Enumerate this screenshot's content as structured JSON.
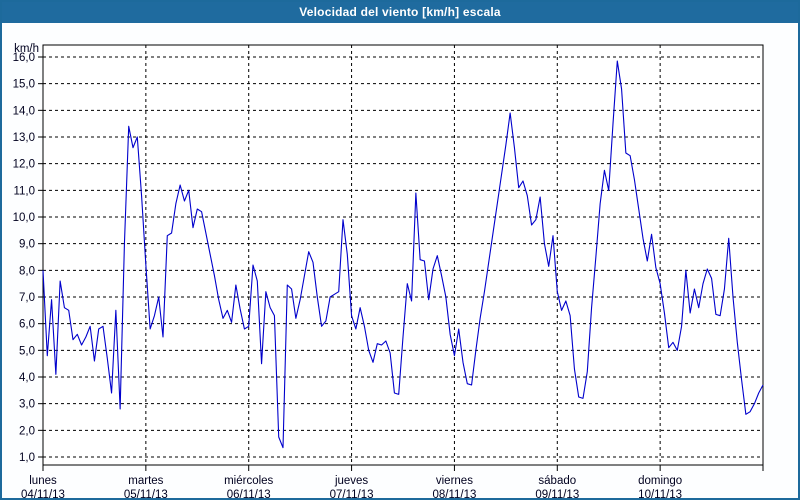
{
  "window": {
    "title": "Velocidad del viento [km/h] escala"
  },
  "colors": {
    "titlebar_bg": "#1f6b9f",
    "window_border": "#1d6a9c",
    "plot_bg": "#ffffff",
    "frame": "#000000",
    "grid": "#000000",
    "line": "#0000cc",
    "axis_text": "#00001f",
    "title_text": "#ffffff"
  },
  "y_axis": {
    "unit_label": "km/h",
    "tick_labels": [
      "16,0",
      "15,0",
      "14,0",
      "13,0",
      "12,0",
      "11,0",
      "10,0",
      "9,0",
      "8,0",
      "7,0",
      "6,0",
      "5,0",
      "4,0",
      "3,0",
      "2,0",
      "1,0"
    ],
    "tick_values": [
      16,
      15,
      14,
      13,
      12,
      11,
      10,
      9,
      8,
      7,
      6,
      5,
      4,
      3,
      2,
      1
    ]
  },
  "x_axis": {
    "days": [
      {
        "name": "lunes",
        "date": "04/11/13"
      },
      {
        "name": "martes",
        "date": "05/11/13"
      },
      {
        "name": "miércoles",
        "date": "06/11/13"
      },
      {
        "name": "jueves",
        "date": "07/11/13"
      },
      {
        "name": "viernes",
        "date": "08/11/13"
      },
      {
        "name": "sábado",
        "date": "09/11/13"
      },
      {
        "name": "domingo",
        "date": "10/11/13"
      }
    ]
  },
  "chart_data": {
    "type": "line",
    "title": "Velocidad del viento [km/h] escala",
    "ylabel": "km/h",
    "xlabel": "",
    "ylim": [
      0.7,
      16.45
    ],
    "grid": true,
    "legend_position": "none",
    "x_unit": "hours since 04/11/13 00:00 (one point per hour)",
    "categories_days": [
      "lunes 04/11/13",
      "martes 05/11/13",
      "miércoles 06/11/13",
      "jueves 07/11/13",
      "viernes 08/11/13",
      "sábado 09/11/13",
      "domingo 10/11/13"
    ],
    "series": [
      {
        "name": "Velocidad del viento (km/h)",
        "values": [
          8.0,
          4.8,
          6.9,
          4.1,
          7.6,
          6.6,
          6.5,
          5.4,
          5.6,
          5.2,
          5.5,
          5.9,
          4.6,
          5.8,
          5.9,
          4.7,
          3.4,
          6.5,
          2.8,
          9.0,
          13.4,
          12.6,
          13.0,
          10.8,
          8.2,
          5.8,
          6.3,
          7.0,
          5.5,
          9.3,
          9.4,
          10.5,
          11.2,
          10.6,
          11.0,
          9.6,
          10.3,
          10.2,
          9.4,
          8.6,
          7.8,
          6.9,
          6.2,
          6.5,
          6.05,
          7.45,
          6.55,
          5.8,
          5.9,
          8.2,
          7.6,
          4.5,
          7.2,
          6.6,
          6.3,
          1.75,
          1.35,
          7.45,
          7.3,
          6.2,
          6.9,
          7.8,
          8.7,
          8.3,
          7.0,
          5.9,
          6.1,
          7.0,
          7.1,
          7.2,
          9.9,
          8.6,
          6.3,
          5.8,
          6.6,
          5.9,
          5.0,
          4.55,
          5.25,
          5.2,
          5.35,
          4.9,
          3.4,
          3.35,
          5.5,
          7.5,
          6.85,
          10.9,
          8.4,
          8.35,
          6.9,
          8.05,
          8.55,
          7.8,
          7.0,
          5.6,
          4.8,
          5.8,
          4.55,
          3.75,
          3.7,
          5.0,
          6.2,
          7.2,
          8.3,
          9.4,
          10.5,
          11.6,
          12.7,
          13.9,
          12.6,
          11.1,
          11.35,
          10.8,
          9.7,
          9.9,
          10.75,
          9.0,
          8.15,
          9.3,
          7.2,
          6.5,
          6.85,
          6.3,
          4.3,
          3.25,
          3.2,
          4.2,
          6.6,
          8.5,
          10.5,
          11.75,
          11.0,
          13.5,
          15.85,
          14.8,
          12.4,
          12.3,
          11.4,
          10.3,
          9.2,
          8.35,
          9.35,
          8.1,
          7.5,
          6.4,
          5.1,
          5.3,
          5.0,
          5.9,
          8.0,
          6.4,
          7.3,
          6.6,
          7.5,
          8.05,
          7.7,
          6.35,
          6.3,
          7.3,
          9.2,
          7.0,
          5.3,
          3.9,
          2.6,
          2.7,
          3.0,
          3.4,
          3.7
        ]
      }
    ]
  }
}
